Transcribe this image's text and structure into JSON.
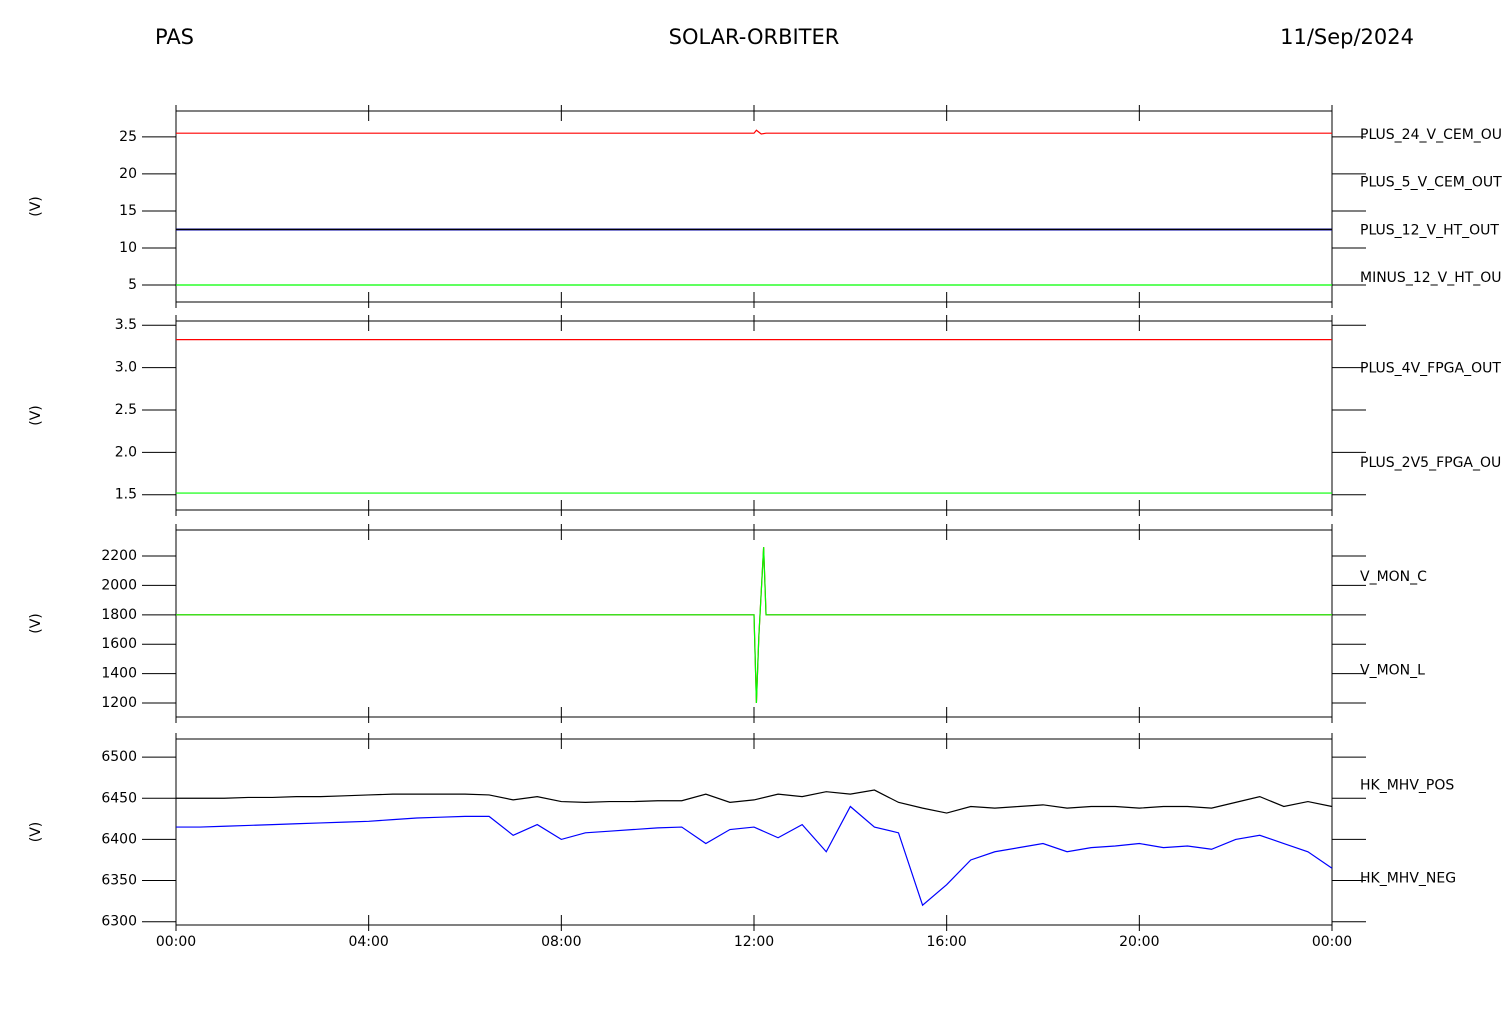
{
  "header": {
    "left": "PAS",
    "center": "SOLAR-ORBITER",
    "right": "11/Sep/2024"
  },
  "chart_data": [
    {
      "type": "line",
      "ylabel": "(V)",
      "xlim": [
        0,
        24
      ],
      "ylim": [
        2.7,
        28.5
      ],
      "yticks": [
        5,
        10,
        15,
        20,
        25
      ],
      "xticks": [
        {
          "value": 0,
          "label": "00:00"
        },
        {
          "value": 4,
          "label": "04:00"
        },
        {
          "value": 8,
          "label": "08:00"
        },
        {
          "value": 12,
          "label": "12:00"
        },
        {
          "value": 16,
          "label": "16:00"
        },
        {
          "value": 20,
          "label": "20:00"
        },
        {
          "value": 24,
          "label": "00:00"
        }
      ],
      "x": [
        0,
        12,
        12.05,
        12.15,
        12.25,
        24
      ],
      "series": [
        {
          "name": "PLUS_24_V_CEM_OU",
          "color": "#ff0000",
          "values": [
            25.5,
            25.5,
            25.9,
            25.4,
            25.5,
            25.5
          ]
        },
        {
          "name": "PLUS_5_V_CEM_OUT",
          "color": "#00ff00",
          "values": [
            5,
            5,
            5,
            5,
            5,
            5
          ]
        },
        {
          "name": "PLUS_12_V_HT_OUT",
          "color": "#0000a0",
          "values": [
            12.5,
            12.5,
            12.5,
            12.5,
            12.5,
            12.5
          ]
        },
        {
          "name": "MINUS_12_V_HT_OU",
          "color": "#000000",
          "values": [
            12.5,
            12.5,
            12.5,
            12.5,
            12.5,
            12.5
          ]
        }
      ]
    },
    {
      "type": "line",
      "ylabel": "(V)",
      "xlim": [
        0,
        24
      ],
      "ylim": [
        1.32,
        3.55
      ],
      "yticks": [
        1.5,
        {
          "value": 2,
          "label": "2.0"
        },
        2.5,
        {
          "value": 3,
          "label": "3.0"
        },
        3.5
      ],
      "xticks": [
        {
          "value": 0,
          "label": "00:00"
        },
        {
          "value": 4,
          "label": "04:00"
        },
        {
          "value": 8,
          "label": "08:00"
        },
        {
          "value": 12,
          "label": "12:00"
        },
        {
          "value": 16,
          "label": "16:00"
        },
        {
          "value": 20,
          "label": "20:00"
        },
        {
          "value": 24,
          "label": "00:00"
        }
      ],
      "x": [
        0,
        24
      ],
      "series": [
        {
          "name": "PLUS_4V_FPGA_OUT",
          "color": "#ff0000",
          "values": [
            3.33,
            3.33
          ]
        },
        {
          "name": "PLUS_2V5_FPGA_OU",
          "color": "#00ff00",
          "values": [
            1.52,
            1.52
          ]
        }
      ]
    },
    {
      "type": "line",
      "ylabel": "(V)",
      "xlim": [
        0,
        24
      ],
      "ylim": [
        1105,
        2377
      ],
      "yticks": [
        1200,
        1400,
        1600,
        1800,
        2000,
        2200
      ],
      "xticks": [
        {
          "value": 0,
          "label": "00:00"
        },
        {
          "value": 4,
          "label": "04:00"
        },
        {
          "value": 8,
          "label": "08:00"
        },
        {
          "value": 12,
          "label": "12:00"
        },
        {
          "value": 16,
          "label": "16:00"
        },
        {
          "value": 20,
          "label": "20:00"
        },
        {
          "value": 24,
          "label": "00:00"
        }
      ],
      "x": [
        0,
        12,
        12.05,
        12.1,
        12.2,
        12.25,
        24
      ],
      "series": [
        {
          "name": "V_MON_C",
          "color": "#ff0000",
          "values": [
            1800,
            1800,
            1200,
            1650,
            2260,
            1800,
            1800
          ]
        },
        {
          "name": "V_MON_L",
          "color": "#00ff00",
          "values": [
            1800,
            1800,
            1200,
            1650,
            2260,
            1800,
            1800
          ]
        }
      ]
    },
    {
      "type": "line",
      "ylabel": "(V)",
      "xlim": [
        0,
        24
      ],
      "ylim": [
        6296,
        6522
      ],
      "yticks": [
        6300,
        6350,
        6400,
        6450,
        6500
      ],
      "xticks": [
        {
          "value": 0,
          "label": "00:00"
        },
        {
          "value": 4,
          "label": "04:00"
        },
        {
          "value": 8,
          "label": "08:00"
        },
        {
          "value": 12,
          "label": "12:00"
        },
        {
          "value": 16,
          "label": "16:00"
        },
        {
          "value": 20,
          "label": "20:00"
        },
        {
          "value": 24,
          "label": "00:00"
        }
      ],
      "x": [
        0,
        0.5,
        1,
        1.5,
        2,
        2.5,
        3,
        3.5,
        4,
        4.5,
        5,
        5.5,
        6,
        6.5,
        7,
        7.5,
        8,
        8.5,
        9,
        9.5,
        10,
        10.5,
        11,
        11.5,
        12,
        12.5,
        13,
        13.5,
        14,
        14.5,
        15,
        15.5,
        16,
        16.5,
        17,
        17.5,
        18,
        18.5,
        19,
        19.5,
        20,
        20.5,
        21,
        21.5,
        22,
        22.5,
        23,
        23.5,
        24
      ],
      "series": [
        {
          "name": "HK_MHV_POS",
          "color": "#000000",
          "values": [
            6450,
            6450,
            6450,
            6451,
            6451,
            6452,
            6452,
            6453,
            6454,
            6455,
            6455,
            6455,
            6455,
            6454,
            6448,
            6452,
            6446,
            6445,
            6446,
            6446,
            6447,
            6447,
            6455,
            6445,
            6448,
            6455,
            6452,
            6458,
            6455,
            6460,
            6445,
            6438,
            6432,
            6440,
            6438,
            6440,
            6442,
            6438,
            6440,
            6440,
            6438,
            6440,
            6440,
            6438,
            6445,
            6452,
            6440,
            6446,
            6440
          ]
        },
        {
          "name": "HK_MHV_NEG",
          "color": "#0000ff",
          "values": [
            6415,
            6415,
            6416,
            6417,
            6418,
            6419,
            6420,
            6421,
            6422,
            6424,
            6426,
            6427,
            6428,
            6428,
            6405,
            6418,
            6400,
            6408,
            6410,
            6412,
            6414,
            6415,
            6395,
            6412,
            6415,
            6402,
            6418,
            6385,
            6440,
            6415,
            6408,
            6320,
            6345,
            6375,
            6385,
            6390,
            6395,
            6385,
            6390,
            6392,
            6395,
            6390,
            6392,
            6388,
            6400,
            6405,
            6395,
            6385,
            6365
          ]
        }
      ]
    }
  ]
}
